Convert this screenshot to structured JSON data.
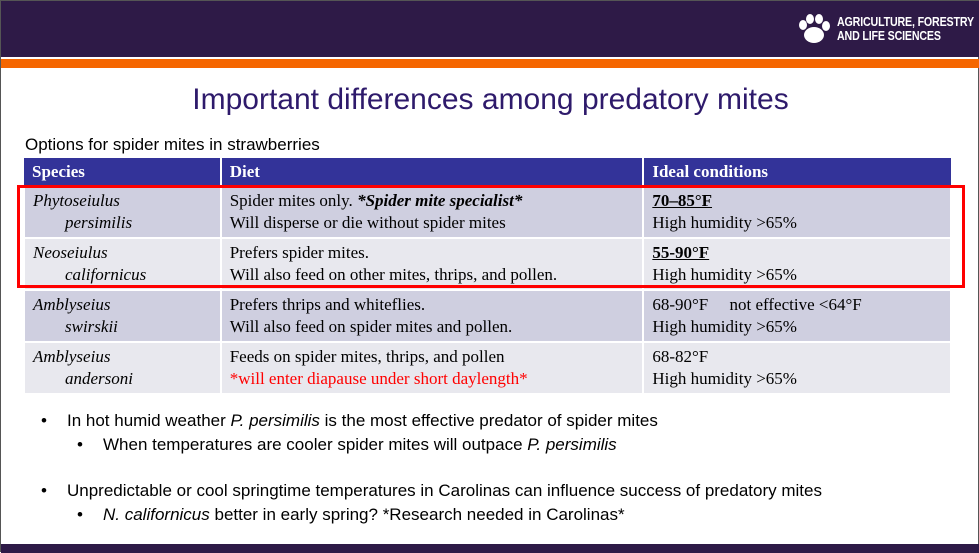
{
  "header": {
    "logo_text_line1": "AGRICULTURE, FORESTRY",
    "logo_text_line2": "AND LIFE SCIENCES",
    "logo_icon": "paw-icon"
  },
  "title": "Important differences among predatory mites",
  "subtitle": "Options for spider mites in strawberries",
  "table": {
    "columns": [
      "Species",
      "Diet",
      "Ideal conditions"
    ],
    "rows": [
      {
        "genus": "Phytoseiulus",
        "species": "persimilis",
        "diet1_a": "Spider mites only. ",
        "diet1_b": "*Spider mite specialist*",
        "diet2": "Will disperse or die without spider mites",
        "cond1": "70–85°F",
        "cond2": "High humidity >65%"
      },
      {
        "genus": "Neoseiulus",
        "species": "californicus",
        "diet1_a": "Prefers spider mites.",
        "diet2": "Will also feed on other mites, thrips, and pollen.",
        "cond1": "55-90°F",
        "cond2": "High humidity >65%"
      },
      {
        "genus": "Amblyseius",
        "species": "swirskii",
        "diet1_a": "Prefers thrips and whiteflies.",
        "diet2": "Will also feed on spider mites and pollen.",
        "cond1": "68-90°F     not effective <64°F",
        "cond2": "High humidity >65%"
      },
      {
        "genus": "Amblyseius",
        "species": "andersoni",
        "diet1_a": "Feeds on spider mites, thrips, and pollen",
        "diet2": "*will enter diapause under short daylength*",
        "cond1": "68-82°F",
        "cond2": "High humidity >65%"
      }
    ]
  },
  "bullets": {
    "b1_a": "In hot humid weather ",
    "b1_i": "P. persimilis",
    "b1_b": " is the most effective predator of spider mites",
    "b2_a": "When temperatures are cooler spider mites will outpace ",
    "b2_i": "P. persimilis",
    "b3": "Unpredictable or cool springtime temperatures in Carolinas can influence success of predatory mites",
    "b4_i": "N. californicus",
    "b4_b": " better in early spring? *Research needed in Carolinas*"
  },
  "colors": {
    "purple": "#2e1a47",
    "orange": "#f56600",
    "table_header": "#333399",
    "highlight": "#ff0000"
  }
}
